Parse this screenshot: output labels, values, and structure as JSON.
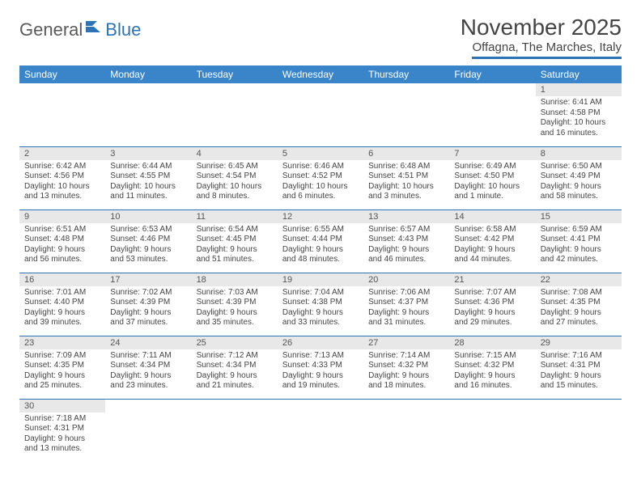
{
  "logo": {
    "part1": "General",
    "part2": "Blue"
  },
  "title": "November 2025",
  "location": "Offagna, The Marches, Italy",
  "colors": {
    "header_bg": "#3a85c9",
    "accent": "#2e74b5",
    "day_num_bg": "#e8e8e8",
    "text": "#444444"
  },
  "weekdays": [
    "Sunday",
    "Monday",
    "Tuesday",
    "Wednesday",
    "Thursday",
    "Friday",
    "Saturday"
  ],
  "weeks": [
    [
      null,
      null,
      null,
      null,
      null,
      null,
      {
        "n": "1",
        "sr": "6:41 AM",
        "ss": "4:58 PM",
        "dl": "10 hours and 16 minutes."
      }
    ],
    [
      {
        "n": "2",
        "sr": "6:42 AM",
        "ss": "4:56 PM",
        "dl": "10 hours and 13 minutes."
      },
      {
        "n": "3",
        "sr": "6:44 AM",
        "ss": "4:55 PM",
        "dl": "10 hours and 11 minutes."
      },
      {
        "n": "4",
        "sr": "6:45 AM",
        "ss": "4:54 PM",
        "dl": "10 hours and 8 minutes."
      },
      {
        "n": "5",
        "sr": "6:46 AM",
        "ss": "4:52 PM",
        "dl": "10 hours and 6 minutes."
      },
      {
        "n": "6",
        "sr": "6:48 AM",
        "ss": "4:51 PM",
        "dl": "10 hours and 3 minutes."
      },
      {
        "n": "7",
        "sr": "6:49 AM",
        "ss": "4:50 PM",
        "dl": "10 hours and 1 minute."
      },
      {
        "n": "8",
        "sr": "6:50 AM",
        "ss": "4:49 PM",
        "dl": "9 hours and 58 minutes."
      }
    ],
    [
      {
        "n": "9",
        "sr": "6:51 AM",
        "ss": "4:48 PM",
        "dl": "9 hours and 56 minutes."
      },
      {
        "n": "10",
        "sr": "6:53 AM",
        "ss": "4:46 PM",
        "dl": "9 hours and 53 minutes."
      },
      {
        "n": "11",
        "sr": "6:54 AM",
        "ss": "4:45 PM",
        "dl": "9 hours and 51 minutes."
      },
      {
        "n": "12",
        "sr": "6:55 AM",
        "ss": "4:44 PM",
        "dl": "9 hours and 48 minutes."
      },
      {
        "n": "13",
        "sr": "6:57 AM",
        "ss": "4:43 PM",
        "dl": "9 hours and 46 minutes."
      },
      {
        "n": "14",
        "sr": "6:58 AM",
        "ss": "4:42 PM",
        "dl": "9 hours and 44 minutes."
      },
      {
        "n": "15",
        "sr": "6:59 AM",
        "ss": "4:41 PM",
        "dl": "9 hours and 42 minutes."
      }
    ],
    [
      {
        "n": "16",
        "sr": "7:01 AM",
        "ss": "4:40 PM",
        "dl": "9 hours and 39 minutes."
      },
      {
        "n": "17",
        "sr": "7:02 AM",
        "ss": "4:39 PM",
        "dl": "9 hours and 37 minutes."
      },
      {
        "n": "18",
        "sr": "7:03 AM",
        "ss": "4:39 PM",
        "dl": "9 hours and 35 minutes."
      },
      {
        "n": "19",
        "sr": "7:04 AM",
        "ss": "4:38 PM",
        "dl": "9 hours and 33 minutes."
      },
      {
        "n": "20",
        "sr": "7:06 AM",
        "ss": "4:37 PM",
        "dl": "9 hours and 31 minutes."
      },
      {
        "n": "21",
        "sr": "7:07 AM",
        "ss": "4:36 PM",
        "dl": "9 hours and 29 minutes."
      },
      {
        "n": "22",
        "sr": "7:08 AM",
        "ss": "4:35 PM",
        "dl": "9 hours and 27 minutes."
      }
    ],
    [
      {
        "n": "23",
        "sr": "7:09 AM",
        "ss": "4:35 PM",
        "dl": "9 hours and 25 minutes."
      },
      {
        "n": "24",
        "sr": "7:11 AM",
        "ss": "4:34 PM",
        "dl": "9 hours and 23 minutes."
      },
      {
        "n": "25",
        "sr": "7:12 AM",
        "ss": "4:34 PM",
        "dl": "9 hours and 21 minutes."
      },
      {
        "n": "26",
        "sr": "7:13 AM",
        "ss": "4:33 PM",
        "dl": "9 hours and 19 minutes."
      },
      {
        "n": "27",
        "sr": "7:14 AM",
        "ss": "4:32 PM",
        "dl": "9 hours and 18 minutes."
      },
      {
        "n": "28",
        "sr": "7:15 AM",
        "ss": "4:32 PM",
        "dl": "9 hours and 16 minutes."
      },
      {
        "n": "29",
        "sr": "7:16 AM",
        "ss": "4:31 PM",
        "dl": "9 hours and 15 minutes."
      }
    ],
    [
      {
        "n": "30",
        "sr": "7:18 AM",
        "ss": "4:31 PM",
        "dl": "9 hours and 13 minutes."
      },
      null,
      null,
      null,
      null,
      null,
      null
    ]
  ]
}
